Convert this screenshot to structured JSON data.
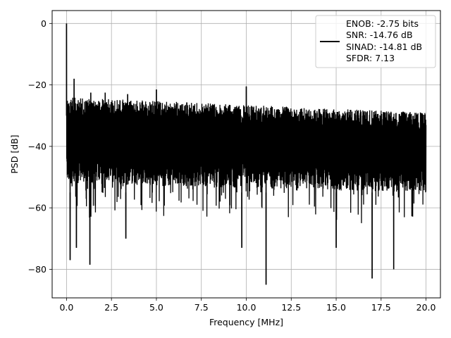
{
  "chart_data": {
    "type": "line",
    "title": "",
    "xlabel": "Frequency [MHz]",
    "ylabel": "PSD [dB]",
    "xlim": [
      -0.8,
      20.8
    ],
    "ylim": [
      -89.3,
      4.2
    ],
    "xticks": [
      0.0,
      2.5,
      5.0,
      7.5,
      10.0,
      12.5,
      15.0,
      17.5,
      20.0
    ],
    "xtick_labels": [
      "0.0",
      "2.5",
      "5.0",
      "7.5",
      "10.0",
      "12.5",
      "15.0",
      "17.5",
      "20.0"
    ],
    "yticks": [
      0,
      -20,
      -40,
      -60,
      -80
    ],
    "ytick_labels": [
      "0",
      "−20",
      "−40",
      "−60",
      "−80"
    ],
    "grid": true,
    "legend_position": "top-right",
    "line_color": "#000000",
    "series": [
      {
        "legend_lines": [
          "ENOB: -2.75 bits",
          "SNR: -14.76 dB",
          "SINAD: -14.81 dB",
          "SFDR: 7.13"
        ],
        "band_upper_start_end": [
          -24,
          -29
        ],
        "band_lower_start_end": [
          -52,
          -55
        ],
        "peaks": [
          {
            "x": 0.0,
            "y": 0.0
          },
          {
            "x": 0.42,
            "y": -18.0
          },
          {
            "x": 5.0,
            "y": -21.5
          },
          {
            "x": 10.0,
            "y": -20.5
          },
          {
            "x": 1.35,
            "y": -22.5
          },
          {
            "x": 2.15,
            "y": -22.5
          },
          {
            "x": 3.4,
            "y": -23.0
          }
        ],
        "dips": [
          {
            "x": 0.2,
            "y": -77.0
          },
          {
            "x": 0.55,
            "y": -73.0
          },
          {
            "x": 1.3,
            "y": -78.5
          },
          {
            "x": 11.1,
            "y": -85.0
          },
          {
            "x": 17.0,
            "y": -83.0
          },
          {
            "x": 18.2,
            "y": -80.0
          },
          {
            "x": 9.75,
            "y": -73.0
          },
          {
            "x": 3.3,
            "y": -70.0
          },
          {
            "x": 15.0,
            "y": -73.0
          }
        ]
      }
    ]
  }
}
